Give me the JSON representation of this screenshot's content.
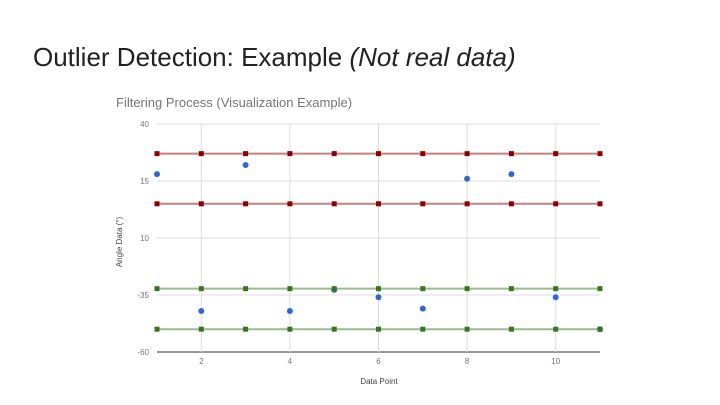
{
  "slide": {
    "title_main": "Outlier Detection: Example ",
    "title_note": "(Not real data)"
  },
  "chart_data": {
    "type": "scatter",
    "title": "Filtering Process (Visualization Example)",
    "xlabel": "Data Point",
    "ylabel": "Angle Data (°)",
    "xlim": [
      1,
      11
    ],
    "ylim": [
      -60,
      40
    ],
    "y_axis_scale": "piecewise",
    "yticks": [
      40,
      15,
      10,
      -35,
      -60
    ],
    "xticks": [
      2,
      4,
      6,
      8,
      10
    ],
    "grid": true,
    "legend": "none",
    "series": [
      {
        "color": "#3366cc",
        "marker": "circle",
        "points": [
          [
            1,
            18
          ],
          [
            2,
            -42
          ],
          [
            3,
            22
          ],
          [
            4,
            -42
          ],
          [
            5,
            -31
          ],
          [
            6,
            -36
          ],
          [
            7,
            -41
          ],
          [
            8,
            16
          ],
          [
            9,
            18
          ],
          [
            10,
            -36
          ],
          [
            11,
            -50
          ]
        ]
      },
      {
        "color": "#8b0000",
        "marker": "square",
        "line": true,
        "points": [
          [
            1,
            27
          ],
          [
            2,
            27
          ],
          [
            3,
            27
          ],
          [
            4,
            27
          ],
          [
            5,
            27
          ],
          [
            6,
            27
          ],
          [
            7,
            27
          ],
          [
            8,
            27
          ],
          [
            9,
            27
          ],
          [
            10,
            27
          ],
          [
            11,
            27
          ]
        ]
      },
      {
        "color": "#8b0000",
        "marker": "square",
        "line": true,
        "points": [
          [
            1,
            13
          ],
          [
            2,
            13
          ],
          [
            3,
            13
          ],
          [
            4,
            13
          ],
          [
            5,
            13
          ],
          [
            6,
            13
          ],
          [
            7,
            13
          ],
          [
            8,
            13
          ],
          [
            9,
            13
          ],
          [
            10,
            13
          ],
          [
            11,
            13
          ]
        ]
      },
      {
        "color": "#38761d",
        "marker": "square",
        "line": true,
        "points": [
          [
            1,
            -30
          ],
          [
            2,
            -30
          ],
          [
            3,
            -30
          ],
          [
            4,
            -30
          ],
          [
            5,
            -30
          ],
          [
            6,
            -30
          ],
          [
            7,
            -30
          ],
          [
            8,
            -30
          ],
          [
            9,
            -30
          ],
          [
            10,
            -30
          ],
          [
            11,
            -30
          ]
        ]
      },
      {
        "color": "#38761d",
        "marker": "square",
        "line": true,
        "points": [
          [
            1,
            -50
          ],
          [
            2,
            -50
          ],
          [
            3,
            -50
          ],
          [
            4,
            -50
          ],
          [
            5,
            -50
          ],
          [
            6,
            -50
          ],
          [
            7,
            -50
          ],
          [
            8,
            -50
          ],
          [
            9,
            -50
          ],
          [
            10,
            -50
          ],
          [
            11,
            -50
          ]
        ]
      }
    ]
  }
}
